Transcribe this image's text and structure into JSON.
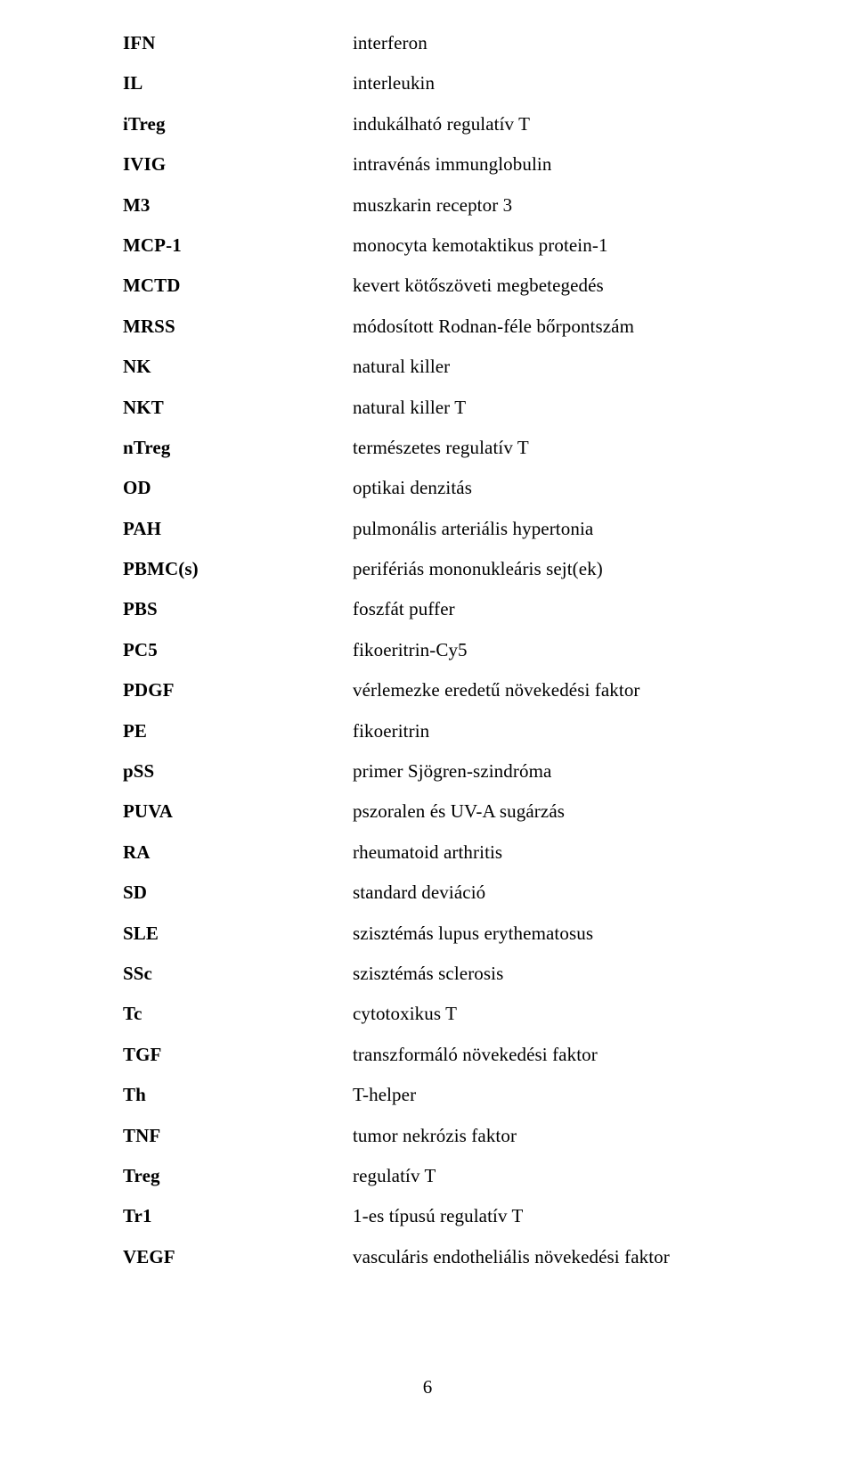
{
  "rows": [
    {
      "abbrev": "IFN",
      "definition": "interferon"
    },
    {
      "abbrev": "IL",
      "definition": "interleukin"
    },
    {
      "abbrev": "iTreg",
      "definition": "indukálható regulatív T"
    },
    {
      "abbrev": "IVIG",
      "definition": "intravénás immunglobulin"
    },
    {
      "abbrev": "M3",
      "definition": "muszkarin receptor 3"
    },
    {
      "abbrev": "MCP-1",
      "definition": "monocyta kemotaktikus protein-1"
    },
    {
      "abbrev": "MCTD",
      "definition": "kevert kötőszöveti megbetegedés"
    },
    {
      "abbrev": "MRSS",
      "definition": "módosított Rodnan-féle bőrpontszám"
    },
    {
      "abbrev": "NK",
      "definition": "natural killer"
    },
    {
      "abbrev": "NKT",
      "definition": "natural killer T"
    },
    {
      "abbrev": "nTreg",
      "definition": "természetes regulatív T"
    },
    {
      "abbrev": "OD",
      "definition": "optikai denzitás"
    },
    {
      "abbrev": "PAH",
      "definition": "pulmonális arteriális hypertonia"
    },
    {
      "abbrev": "PBMC(s)",
      "definition": "perifériás mononukleáris sejt(ek)"
    },
    {
      "abbrev": "PBS",
      "definition": "foszfát puffer"
    },
    {
      "abbrev": "PC5",
      "definition": "fikoeritrin-Cy5"
    },
    {
      "abbrev": "PDGF",
      "definition": "vérlemezke eredetű növekedési faktor"
    },
    {
      "abbrev": "PE",
      "definition": "fikoeritrin"
    },
    {
      "abbrev": "pSS",
      "definition": "primer Sjögren-szindróma"
    },
    {
      "abbrev": "PUVA",
      "definition": "pszoralen és UV-A sugárzás"
    },
    {
      "abbrev": "RA",
      "definition": "rheumatoid arthritis"
    },
    {
      "abbrev": "SD",
      "definition": "standard deviáció"
    },
    {
      "abbrev": "SLE",
      "definition": "szisztémás lupus erythematosus"
    },
    {
      "abbrev": "SSc",
      "definition": "szisztémás sclerosis"
    },
    {
      "abbrev": "Tc",
      "definition": "cytotoxikus T"
    },
    {
      "abbrev": "TGF",
      "definition": "transzformáló növekedési faktor"
    },
    {
      "abbrev": "Th",
      "definition": "T-helper"
    },
    {
      "abbrev": "TNF",
      "definition": "tumor nekrózis faktor"
    },
    {
      "abbrev": "Treg",
      "definition": "regulatív T"
    },
    {
      "abbrev": "Tr1",
      "definition": "1-es típusú regulatív T"
    },
    {
      "abbrev": "VEGF",
      "definition": "vasculáris endotheliális növekedési faktor"
    }
  ],
  "page_number": "6"
}
